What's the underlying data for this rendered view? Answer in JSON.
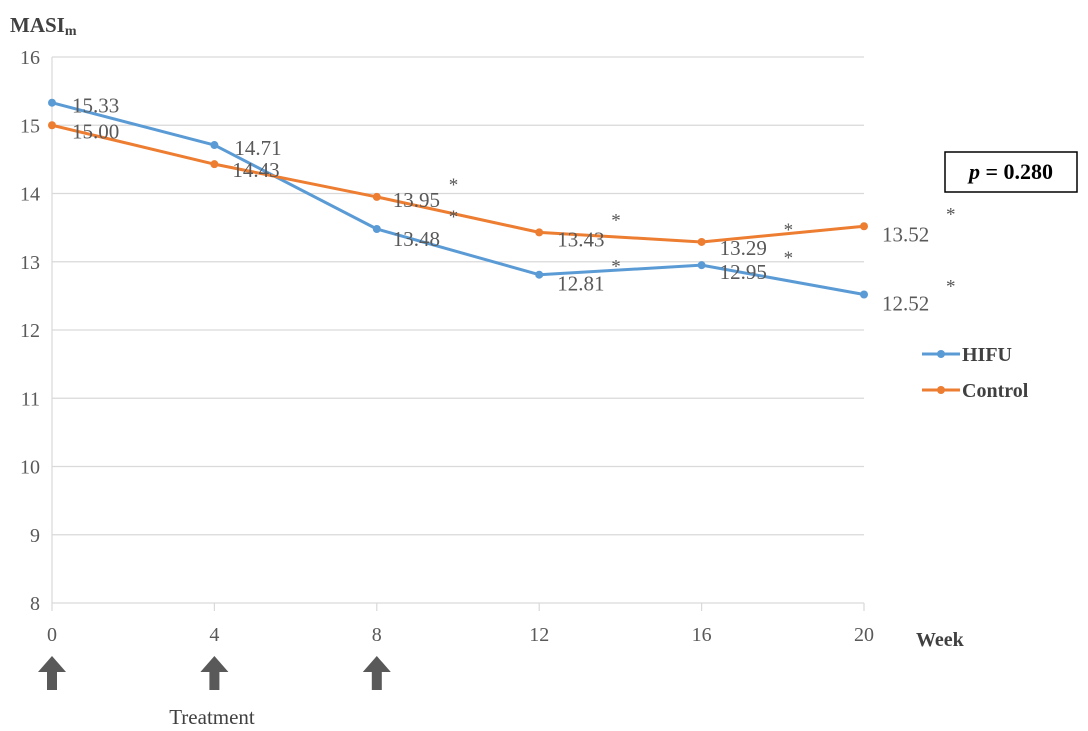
{
  "chart_data": {
    "type": "line",
    "ylabel_main": "MASI",
    "ylabel_sub": "m",
    "xlabel": "Week",
    "x": [
      0,
      4,
      8,
      12,
      16,
      20
    ],
    "xlim": [
      0,
      20
    ],
    "ylim": [
      8,
      16
    ],
    "xticks": [
      "0",
      "4",
      "8",
      "12",
      "16",
      "20"
    ],
    "yticks": [
      "8",
      "9",
      "10",
      "11",
      "12",
      "13",
      "14",
      "15",
      "16"
    ],
    "grid": "horizontal",
    "legend_position": "right",
    "series": [
      {
        "name": "HIFU",
        "color": "#5b9bd5",
        "values": [
          15.33,
          14.71,
          13.48,
          12.81,
          12.95,
          12.52
        ],
        "labels": [
          "15.33",
          "14.71",
          "13.48",
          "12.81",
          "12.95",
          "12.52"
        ],
        "significant": [
          false,
          false,
          true,
          true,
          true,
          true
        ]
      },
      {
        "name": "Control",
        "color": "#ed7d31",
        "values": [
          15.0,
          14.43,
          13.95,
          13.43,
          13.29,
          13.52
        ],
        "labels": [
          "15.00",
          "14.43",
          "13.95",
          "13.43",
          "13.29",
          "13.52"
        ],
        "significant": [
          false,
          false,
          true,
          true,
          true,
          true
        ]
      }
    ],
    "significance_marker": "*",
    "annotation": {
      "p_symbol": "p",
      "p_rest": " = 0.280"
    },
    "treatment_weeks": [
      0,
      4,
      8
    ],
    "treatment_label": "Treatment",
    "colors": {
      "axis": "#d9d9d9",
      "grid": "#d9d9d9",
      "text": "#595959",
      "arrow": "#595959"
    }
  }
}
